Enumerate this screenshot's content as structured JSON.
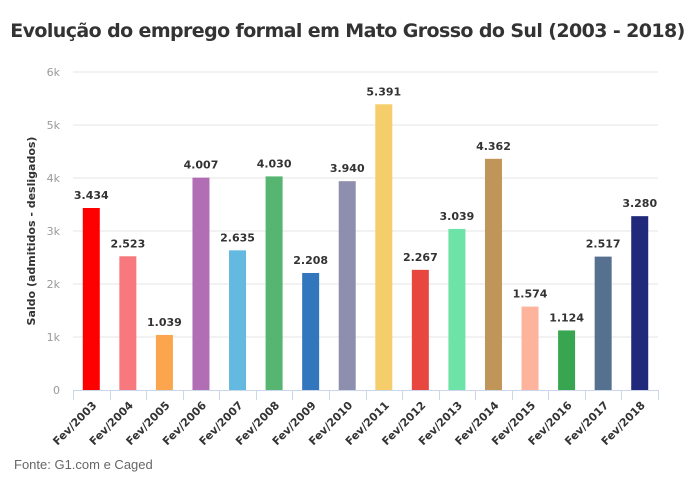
{
  "chart_data": {
    "type": "bar",
    "title": "Evolução do emprego formal em Mato Grosso do Sul (2003 - 2018)",
    "xlabel": "",
    "ylabel": "Saldo (admitidos - desligados)",
    "ylim": [
      0,
      6000
    ],
    "yticks": [
      0,
      1000,
      2000,
      3000,
      4000,
      5000,
      6000
    ],
    "ytick_labels": [
      "0",
      "1k",
      "2k",
      "3k",
      "4k",
      "5k",
      "6k"
    ],
    "grid": true,
    "legend": "none",
    "categories": [
      "Fev/2003",
      "Fev/2004",
      "Fev/2005",
      "Fev/2006",
      "Fev/2007",
      "Fev/2008",
      "Fev/2009",
      "Fev/2010",
      "Fev/2011",
      "Fev/2012",
      "Fev/2013",
      "Fev/2014",
      "Fev/2015",
      "Fev/2016",
      "Fev/2017",
      "Fev/2018"
    ],
    "values": [
      3434,
      2523,
      1039,
      4007,
      2635,
      4030,
      2208,
      3940,
      5391,
      2267,
      3039,
      4362,
      1574,
      1124,
      2517,
      3280
    ],
    "data_labels": [
      "3.434",
      "2.523",
      "1.039",
      "4.007",
      "2.635",
      "4.030",
      "2.208",
      "3.940",
      "5.391",
      "2.267",
      "3.039",
      "4.362",
      "1.574",
      "1.124",
      "2.517",
      "3.280"
    ],
    "colors": [
      "#ff0000",
      "#f7797d",
      "#fba54e",
      "#b26eb4",
      "#63b9e0",
      "#55b571",
      "#3276bd",
      "#8e8fae",
      "#f6cd6b",
      "#e8473f",
      "#6de3a7",
      "#c0955a",
      "#fdb39c",
      "#38a650",
      "#56708f",
      "#212a7a"
    ]
  },
  "footer": {
    "source": "Fonte: G1.com e Caged"
  }
}
